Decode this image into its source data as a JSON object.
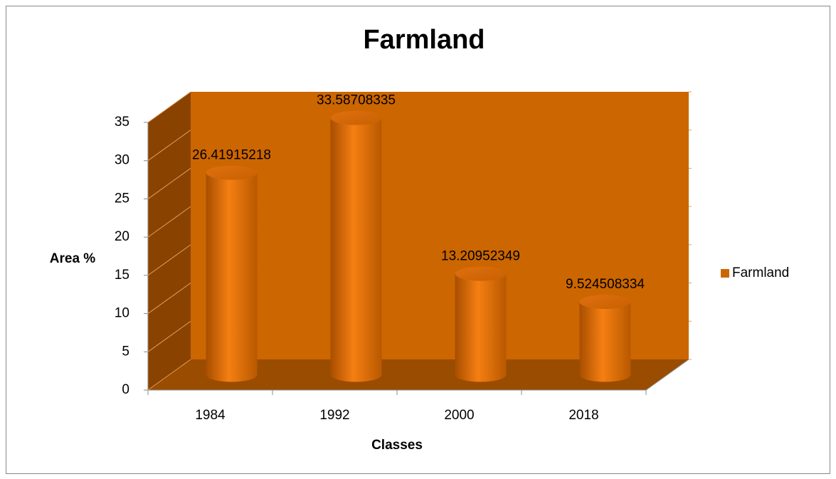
{
  "chart_data": {
    "type": "bar",
    "title": "Farmland",
    "x_label": "Classes",
    "y_label": "Area %",
    "categories": [
      "1984",
      "1992",
      "2000",
      "2018"
    ],
    "series": [
      {
        "name": "Farmland",
        "color": "#cc6600",
        "values": [
          26.41915218,
          33.58708335,
          13.20952349,
          9.524508334
        ]
      }
    ],
    "ylim": [
      0,
      35
    ],
    "yticks": [
      0,
      5,
      10,
      15,
      20,
      25,
      30,
      35
    ],
    "grid": true,
    "legend": "right"
  }
}
